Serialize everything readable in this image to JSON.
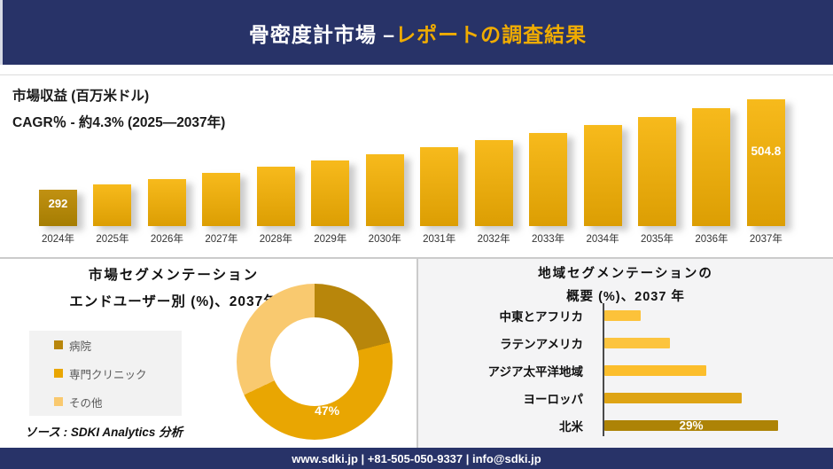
{
  "header": {
    "title_main": "骨密度計市場 –",
    "title_accent": "レポートの調査結果"
  },
  "colors": {
    "navy": "#283368",
    "accent_gold": "#F0AC00",
    "divider_gray": "#CBCBCB"
  },
  "chart_data": [
    {
      "id": "revenue",
      "type": "bar",
      "title": "市場収益 (百万米ドル)",
      "subtitle": "CAGR％ - 約4.3% (2025―2037年)",
      "categories": [
        "2024年",
        "2025年",
        "2026年",
        "2027年",
        "2028年",
        "2029年",
        "2030年",
        "2031年",
        "2032年",
        "2033年",
        "2034年",
        "2035年",
        "2036年",
        "2037年"
      ],
      "values": [
        292,
        304.6,
        317.7,
        331.3,
        345.6,
        360.4,
        375.9,
        392.1,
        408.9,
        426.5,
        444.9,
        464.0,
        484.0,
        504.8
      ],
      "visible_data_labels": [
        {
          "category": "2024年",
          "text": "292"
        },
        {
          "category": "2037年",
          "text": "504.8"
        }
      ],
      "colors": {
        "first_bar_top": "#C19112",
        "first_bar_bottom": "#A57D02",
        "bar_top": "#F7BA1C",
        "bar_bottom": "#DC9E03"
      },
      "grid": false,
      "legend_position": "none"
    },
    {
      "id": "end-user-segmentation",
      "type": "pie",
      "donut": true,
      "title_line1": "市場セグメンテーション",
      "title_line2": "エンドユーザー別 (%)、2037年",
      "labels": [
        "病院",
        "専門クリニック",
        "その他"
      ],
      "values": [
        21,
        47,
        32
      ],
      "colors": [
        "#B8860B",
        "#E9A602",
        "#F9C96F"
      ],
      "visible_data_labels": [
        {
          "label": "専門クリニック",
          "text": "47%"
        }
      ],
      "legend_position": "left"
    },
    {
      "id": "regional-segmentation",
      "type": "bar",
      "orientation": "horizontal",
      "title_line1": "地域セグメンテーションの",
      "title_line2": "概要 (%)、2037 年",
      "categories": [
        "中東とアフリカ",
        "ラテンアメリカ",
        "アジア太平洋地域",
        "ヨーロッパ",
        "北米"
      ],
      "values": [
        6,
        11,
        17,
        23,
        29
      ],
      "colors": [
        "#FCC23A",
        "#FCC43F",
        "#FCBE2C",
        "#DEA414",
        "#AD8306"
      ],
      "visible_data_labels": [
        {
          "category": "北米",
          "text": "29%"
        }
      ],
      "grid": false
    }
  ],
  "source": {
    "text": "ソース : SDKI Analytics 分析"
  },
  "footer": {
    "text": "www.sdki.jp | +81-505-050-9337 | info@sdki.jp"
  }
}
